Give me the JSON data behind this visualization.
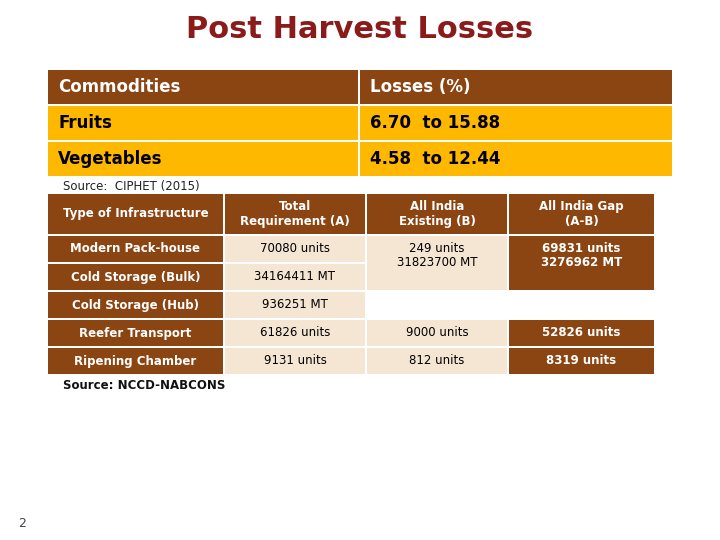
{
  "title": "Post Harvest Losses",
  "title_color": "#8B1A1A",
  "bg_color": "#FFFFFF",
  "table1": {
    "header": [
      "Commodities",
      "Losses (%)"
    ],
    "rows": [
      [
        "Fruits",
        "6.70  to 15.88"
      ],
      [
        "Vegetables",
        "4.58  to 12.44"
      ]
    ],
    "header_bg": "#8B4513",
    "header_fg": "#FFFFFF",
    "row_bg": "#FFB800",
    "row_fg": "#000000",
    "source": "Source:  CIPHET (2015)"
  },
  "table2": {
    "header": [
      "Type of Infrastructure",
      "Total\nRequirement (A)",
      "All India\nExisting (B)",
      "All India Gap\n(A-B)"
    ],
    "rows": [
      [
        "Modern Pack-house",
        "70080 units",
        "249 units",
        "69831 units"
      ],
      [
        "Cold Storage (Bulk)",
        "34164411 MT",
        "31823700 MT",
        "3276962 MT"
      ],
      [
        "Cold Storage (Hub)",
        "936251 MT",
        "",
        ""
      ],
      [
        "Reefer Transport",
        "61826 units",
        "9000 units",
        "52826 units"
      ],
      [
        "Ripening Chamber",
        "9131 units",
        "812 units",
        "8319 units"
      ]
    ],
    "header_bg": "#8B4513",
    "header_fg": "#FFFFFF",
    "col1_bg": "#8B4513",
    "col1_fg": "#FFFFFF",
    "data_bg": "#F5E6D3",
    "gap_bg": "#8B4513",
    "gap_fg": "#FFFFFF",
    "source": "Source: NCCD-NABCONS"
  },
  "page_num": "2"
}
